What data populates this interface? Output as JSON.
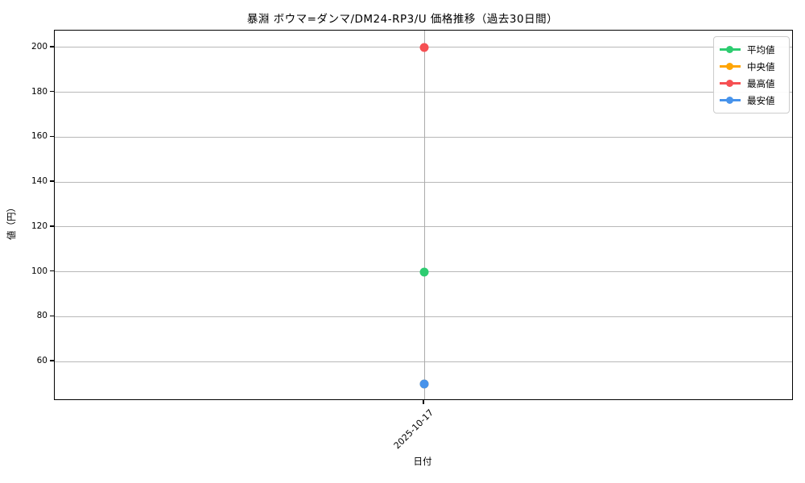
{
  "chart": {
    "title": "暴淵 ボウマ=ダンマ/DM24-RP3/U 価格推移（過去30日間）",
    "xlabel": "日付",
    "ylabel": "値（円）"
  },
  "chart_data": {
    "type": "line",
    "title": "暴淵 ボウマ=ダンマ/DM24-RP3/U 価格推移（過去30日間）",
    "xlabel": "日付",
    "ylabel": "値（円）",
    "x": [
      "2025-10-17"
    ],
    "series": [
      {
        "name": "平均値",
        "color": "#2dcc70",
        "values": [
          100
        ],
        "marker_visible": true
      },
      {
        "name": "中央値",
        "color": "#ffa502",
        "values": [
          50
        ],
        "marker_visible": false
      },
      {
        "name": "最高値",
        "color": "#f65053",
        "values": [
          200
        ],
        "marker_visible": true
      },
      {
        "name": "最安値",
        "color": "#4793eb",
        "values": [
          50
        ],
        "marker_visible": true
      }
    ],
    "yticks": [
      60,
      80,
      100,
      120,
      140,
      160,
      180,
      200
    ],
    "ylim": [
      42.5,
      207.5
    ],
    "grid": true,
    "legend_position": "upper right"
  }
}
